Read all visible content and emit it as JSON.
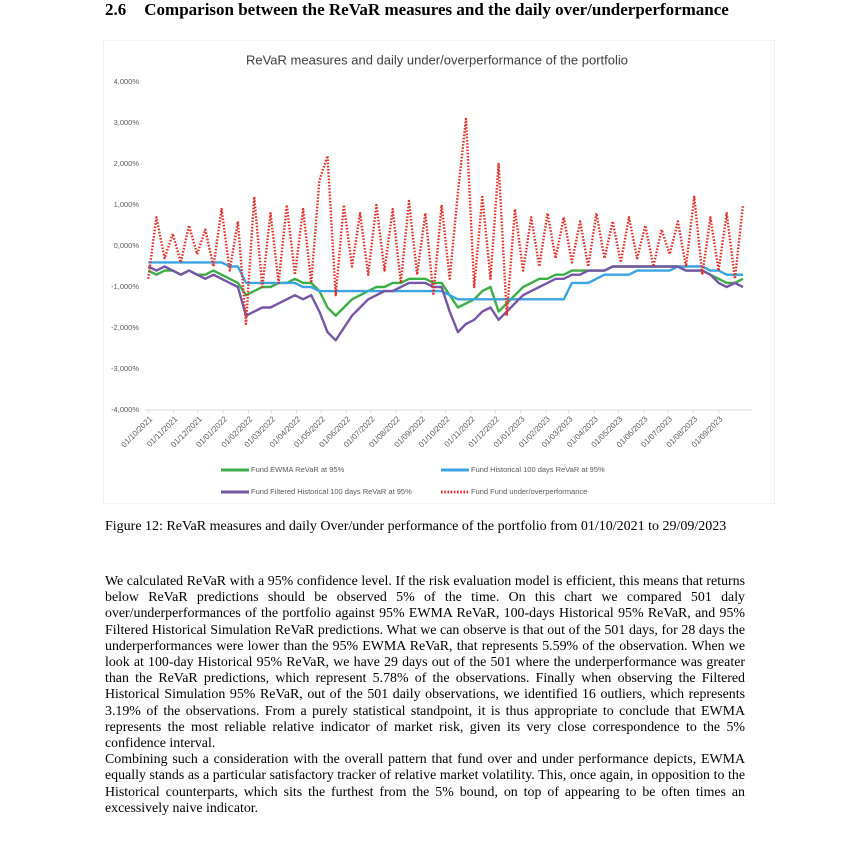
{
  "section": {
    "number": "2.6",
    "title": "Comparison between the ReVaR measures and the daily over/underperformance"
  },
  "chart_data": {
    "type": "line",
    "title": "ReVaR measures and daily under/overperformance of the portfolio",
    "x": [
      0,
      10,
      20,
      30,
      40,
      50,
      60,
      70,
      80,
      90,
      100,
      110,
      120,
      130,
      140,
      150,
      160,
      170,
      180,
      190,
      200,
      210,
      220,
      230,
      240,
      250,
      260,
      270,
      280,
      290,
      300,
      310,
      320,
      330,
      340,
      350,
      360,
      370,
      380,
      390,
      400,
      410,
      420,
      430,
      440,
      450,
      460,
      470,
      480,
      490,
      500,
      510,
      520,
      530,
      540,
      550,
      560,
      570,
      580,
      590,
      600,
      610,
      620,
      630,
      640,
      650,
      660,
      670,
      680,
      690,
      700,
      710,
      720,
      730
    ],
    "xlim": [
      -4,
      741
    ],
    "xticks": [
      {
        "value": 0,
        "label": "01/10/2021"
      },
      {
        "value": 31,
        "label": "01/11/2021"
      },
      {
        "value": 61,
        "label": "01/12/2021"
      },
      {
        "value": 92,
        "label": "01/01/2022"
      },
      {
        "value": 123,
        "label": "01/02/2022"
      },
      {
        "value": 151,
        "label": "01/03/2022"
      },
      {
        "value": 182,
        "label": "01/04/2022"
      },
      {
        "value": 212,
        "label": "01/05/2022"
      },
      {
        "value": 243,
        "label": "01/06/2022"
      },
      {
        "value": 273,
        "label": "01/07/2022"
      },
      {
        "value": 304,
        "label": "01/08/2022"
      },
      {
        "value": 335,
        "label": "01/09/2022"
      },
      {
        "value": 365,
        "label": "01/10/2022"
      },
      {
        "value": 396,
        "label": "01/11/2022"
      },
      {
        "value": 426,
        "label": "01/12/2022"
      },
      {
        "value": 457,
        "label": "01/01/2023"
      },
      {
        "value": 488,
        "label": "01/02/2023"
      },
      {
        "value": 516,
        "label": "01/03/2023"
      },
      {
        "value": 547,
        "label": "01/04/2023"
      },
      {
        "value": 577,
        "label": "01/05/2023"
      },
      {
        "value": 608,
        "label": "01/06/2023"
      },
      {
        "value": 638,
        "label": "01/07/2023"
      },
      {
        "value": 669,
        "label": "01/08/2023"
      },
      {
        "value": 700,
        "label": "01/09/2023"
      }
    ],
    "ylim": [
      -4,
      4
    ],
    "yticks": [
      {
        "value": -4,
        "label": "-4,000%"
      },
      {
        "value": -3,
        "label": "-3,000%"
      },
      {
        "value": -2,
        "label": "-2,000%"
      },
      {
        "value": -1,
        "label": "-1,000%"
      },
      {
        "value": 0,
        "label": "0,000%"
      },
      {
        "value": 1,
        "label": "1,000%"
      },
      {
        "value": 2,
        "label": "2,000%"
      },
      {
        "value": 3,
        "label": "3,000%"
      },
      {
        "value": 4,
        "label": "4,000%"
      }
    ],
    "grid": false,
    "series": [
      {
        "name": "Fund EWMA ReVaR at 95%",
        "color": "#3cae47",
        "style": "solid",
        "values": [
          -0.6,
          -0.7,
          -0.6,
          -0.6,
          -0.7,
          -0.6,
          -0.7,
          -0.7,
          -0.6,
          -0.7,
          -0.8,
          -0.9,
          -1.2,
          -1.1,
          -1.0,
          -1.0,
          -0.9,
          -0.9,
          -0.8,
          -0.9,
          -0.9,
          -1.1,
          -1.5,
          -1.7,
          -1.5,
          -1.3,
          -1.2,
          -1.1,
          -1.0,
          -1.0,
          -0.9,
          -0.9,
          -0.8,
          -0.8,
          -0.8,
          -0.9,
          -0.9,
          -1.2,
          -1.5,
          -1.4,
          -1.3,
          -1.1,
          -1.0,
          -1.6,
          -1.4,
          -1.2,
          -1.0,
          -0.9,
          -0.8,
          -0.8,
          -0.7,
          -0.7,
          -0.6,
          -0.6,
          -0.6,
          -0.6,
          -0.6,
          -0.5,
          -0.5,
          -0.5,
          -0.5,
          -0.5,
          -0.5,
          -0.5,
          -0.5,
          -0.5,
          -0.6,
          -0.6,
          -0.6,
          -0.7,
          -0.8,
          -0.9,
          -0.9,
          -0.8
        ]
      },
      {
        "name": "Fund Historical 100 days ReVaR at 95%",
        "color": "#3ba3e0",
        "style": "solid",
        "values": [
          -0.4,
          -0.4,
          -0.4,
          -0.4,
          -0.4,
          -0.4,
          -0.4,
          -0.4,
          -0.4,
          -0.4,
          -0.5,
          -0.5,
          -0.9,
          -0.9,
          -0.9,
          -0.9,
          -0.9,
          -0.9,
          -0.9,
          -1.0,
          -1.0,
          -1.1,
          -1.1,
          -1.1,
          -1.1,
          -1.1,
          -1.1,
          -1.1,
          -1.1,
          -1.1,
          -1.1,
          -1.1,
          -1.1,
          -1.1,
          -1.1,
          -1.1,
          -1.1,
          -1.2,
          -1.3,
          -1.3,
          -1.3,
          -1.3,
          -1.3,
          -1.3,
          -1.3,
          -1.3,
          -1.3,
          -1.3,
          -1.3,
          -1.3,
          -1.3,
          -1.3,
          -0.9,
          -0.9,
          -0.9,
          -0.8,
          -0.7,
          -0.7,
          -0.7,
          -0.7,
          -0.6,
          -0.6,
          -0.6,
          -0.6,
          -0.6,
          -0.5,
          -0.5,
          -0.5,
          -0.5,
          -0.6,
          -0.6,
          -0.7,
          -0.7,
          -0.7
        ]
      },
      {
        "name": "Fund Filtered Historical 100 days ReVaR at 95%",
        "color": "#7656a6",
        "style": "solid",
        "values": [
          -0.5,
          -0.6,
          -0.5,
          -0.6,
          -0.7,
          -0.6,
          -0.7,
          -0.8,
          -0.7,
          -0.8,
          -0.9,
          -1.0,
          -1.7,
          -1.6,
          -1.5,
          -1.5,
          -1.4,
          -1.3,
          -1.2,
          -1.3,
          -1.2,
          -1.6,
          -2.1,
          -2.3,
          -2.0,
          -1.7,
          -1.5,
          -1.3,
          -1.2,
          -1.1,
          -1.1,
          -1.0,
          -0.9,
          -0.9,
          -0.9,
          -1.0,
          -1.0,
          -1.6,
          -2.1,
          -1.9,
          -1.8,
          -1.6,
          -1.5,
          -1.8,
          -1.6,
          -1.4,
          -1.2,
          -1.1,
          -1.0,
          -0.9,
          -0.8,
          -0.8,
          -0.7,
          -0.7,
          -0.6,
          -0.6,
          -0.6,
          -0.5,
          -0.5,
          -0.5,
          -0.5,
          -0.5,
          -0.5,
          -0.5,
          -0.5,
          -0.5,
          -0.6,
          -0.6,
          -0.6,
          -0.7,
          -0.9,
          -1.0,
          -0.9,
          -1.0
        ]
      },
      {
        "name": "Fund Fund under/overperformance",
        "color": "#e0302a",
        "style": "dotted",
        "values": [
          -0.8,
          0.7,
          -0.3,
          0.3,
          -0.4,
          0.5,
          -0.2,
          0.4,
          -0.5,
          0.9,
          -0.6,
          0.6,
          -1.9,
          1.2,
          -1.0,
          0.8,
          -0.9,
          1.0,
          -0.7,
          0.9,
          -0.9,
          1.6,
          2.2,
          -1.2,
          1.0,
          -0.5,
          0.8,
          -0.7,
          1.0,
          -0.6,
          0.9,
          -0.9,
          1.1,
          -0.7,
          0.8,
          -1.2,
          1.0,
          -0.8,
          1.3,
          3.1,
          -1.0,
          1.2,
          -0.8,
          2.0,
          -1.7,
          0.9,
          -0.6,
          0.7,
          -0.5,
          0.8,
          -0.3,
          0.7,
          -0.4,
          0.6,
          -0.5,
          0.8,
          -0.3,
          0.6,
          -0.4,
          0.7,
          -0.3,
          0.5,
          -0.5,
          0.4,
          -0.2,
          0.6,
          -0.5,
          1.2,
          -0.7,
          0.7,
          -0.6,
          0.8,
          -0.8,
          1.0
        ]
      }
    ]
  },
  "caption": "Figure 12: ReVaR measures and daily Over/under performance of the portfolio from 01/10/2021 to 29/09/2023",
  "paragraphs": [
    "We calculated ReVaR with a 95% confidence level. If the risk evaluation model is efficient, this means that returns below ReVaR predictions should be observed 5% of the time. On this chart we compared 501 daly over/underperformances of the portfolio against 95% EWMA ReVaR, 100-days Historical 95% ReVaR, and 95% Filtered Historical Simulation ReVaR predictions. What we can observe is that out of the 501 days, for 28 days the underperformances were lower than the 95% EWMA ReVaR, that represents 5.59% of the observation. When we look at 100-day Historical 95% ReVaR, we have 29 days out of the 501 where the underperformance was greater than the ReVaR predictions, which represent 5.78% of the observations. Finally when observing the Filtered Historical Simulation 95% ReVaR, out of the 501 daily observations, we identified 16 outliers, which represents 3.19% of the observations. From a purely statistical standpoint, it is thus appropriate to conclude that EWMA represents the most reliable relative indicator of market risk, given its very close correspondence to the 5% confidence interval.",
    "Combining such a consideration with the overall pattern that fund over and under performance depicts, EWMA equally stands as a particular satisfactory tracker of relative market volatility. This, once again, in opposition to the Historical counterparts, which sits the furthest from the 5% bound, on top of appearing to be often times an excessively naive indicator."
  ]
}
